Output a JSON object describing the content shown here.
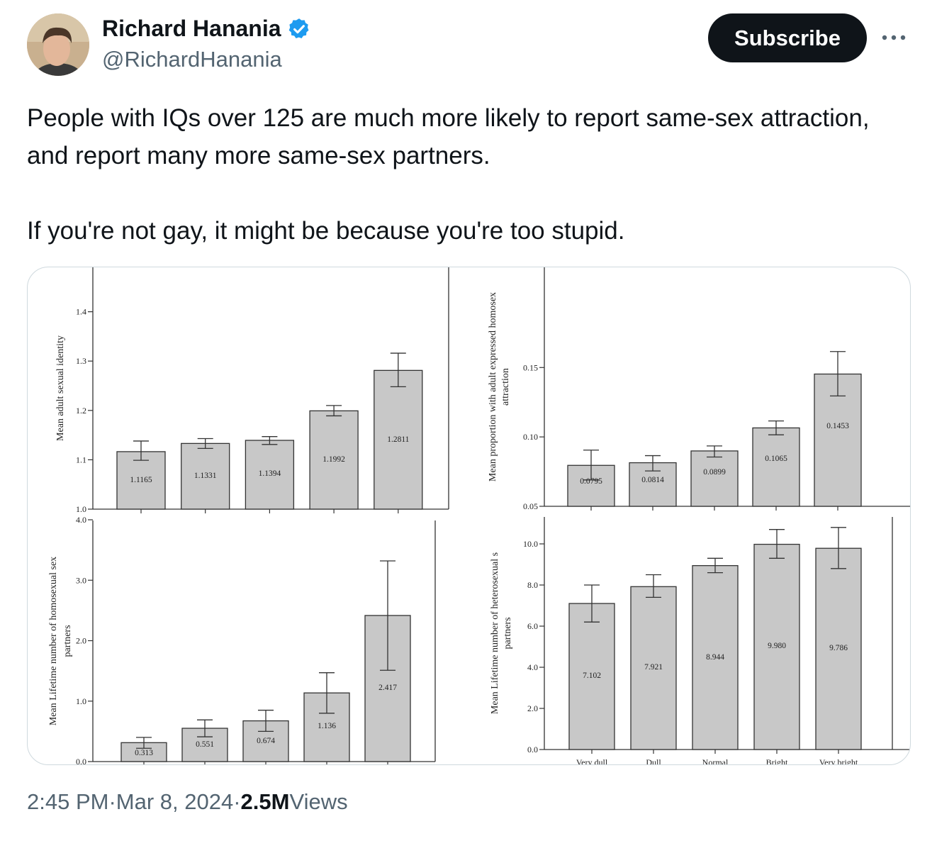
{
  "author": {
    "name": "Richard Hanania",
    "handle": "@RichardHanania",
    "verified_color": "#1d9bf0",
    "avatar": "person-avatar"
  },
  "header": {
    "subscribe_label": "Subscribe",
    "more_icon": "more-horizontal-icon"
  },
  "tweet": {
    "paragraph1": "People with IQs over 125 are much more likely to report same-sex attraction, and report many more same-sex partners.",
    "paragraph2": "If you're not gay, it might be because you're too stupid."
  },
  "footer": {
    "time": "2:45 PM",
    "sep1": " · ",
    "date": "Mar 8, 2024",
    "sep2": " · ",
    "views_count": "2.5M",
    "views_label": " Views"
  },
  "chart_data": [
    {
      "type": "bar",
      "ylabel": "Mean adult sexual identity",
      "ylim": [
        1.0,
        1.5
      ],
      "yticks": [
        "1.0",
        "1.1",
        "1.2",
        "1.3",
        "1.4"
      ],
      "values": [
        1.1165,
        1.1331,
        1.1394,
        1.1992,
        1.2811
      ],
      "labels": [
        "1.1165",
        "1.1331",
        "1.1394",
        "1.1992",
        "1.2811"
      ],
      "err_low": [
        1.099,
        1.123,
        1.131,
        1.189,
        1.248
      ],
      "err_high": [
        1.138,
        1.143,
        1.147,
        1.21,
        1.316
      ]
    },
    {
      "type": "bar",
      "ylabel": "Mean proportion with adult expressed homosex",
      "ylabel2": "attraction",
      "ylim": [
        0.05,
        0.19
      ],
      "yticks": [
        "0.05",
        "0.10",
        "0.15"
      ],
      "values": [
        0.0795,
        0.0814,
        0.0899,
        0.1065,
        0.1453
      ],
      "labels": [
        "0.0795",
        "0.0814",
        "0.0899",
        "0.1065",
        "0.1453"
      ],
      "err_low": [
        0.069,
        0.0755,
        0.0855,
        0.1015,
        0.1295
      ],
      "err_high": [
        0.0905,
        0.0865,
        0.0935,
        0.1115,
        0.1615
      ]
    },
    {
      "type": "bar",
      "ylabel": "Mean Lifetime number of homosexual sex",
      "ylabel2": "partners",
      "ylim": [
        0.0,
        4.0
      ],
      "yticks": [
        "0.0",
        "1.0",
        "2.0",
        "3.0",
        "4.0"
      ],
      "values": [
        0.313,
        0.551,
        0.674,
        1.136,
        2.417
      ],
      "labels": [
        "0.313",
        "0.551",
        "0.674",
        "1.136",
        "2.417"
      ],
      "err_low": [
        0.22,
        0.41,
        0.5,
        0.8,
        1.51
      ],
      "err_high": [
        0.4,
        0.69,
        0.85,
        1.47,
        3.32
      ]
    },
    {
      "type": "bar",
      "ylabel": "Mean Lifetime number of heterosexual s",
      "ylabel2": "partners",
      "ylim": [
        0.0,
        11.0
      ],
      "yticks": [
        "0.0",
        "2.0",
        "4.0",
        "6.0",
        "8.0",
        "10.0"
      ],
      "categories": [
        "Very dull",
        "Dull",
        "Normal",
        "Bright",
        "Very bright"
      ],
      "values": [
        7.102,
        7.921,
        8.944,
        9.98,
        9.786
      ],
      "labels": [
        "7.102",
        "7.921",
        "8.944",
        "9.980",
        "9.786"
      ],
      "err_low": [
        6.2,
        7.4,
        8.6,
        9.3,
        8.8
      ],
      "err_high": [
        8.0,
        8.5,
        9.3,
        10.7,
        10.8
      ]
    }
  ]
}
